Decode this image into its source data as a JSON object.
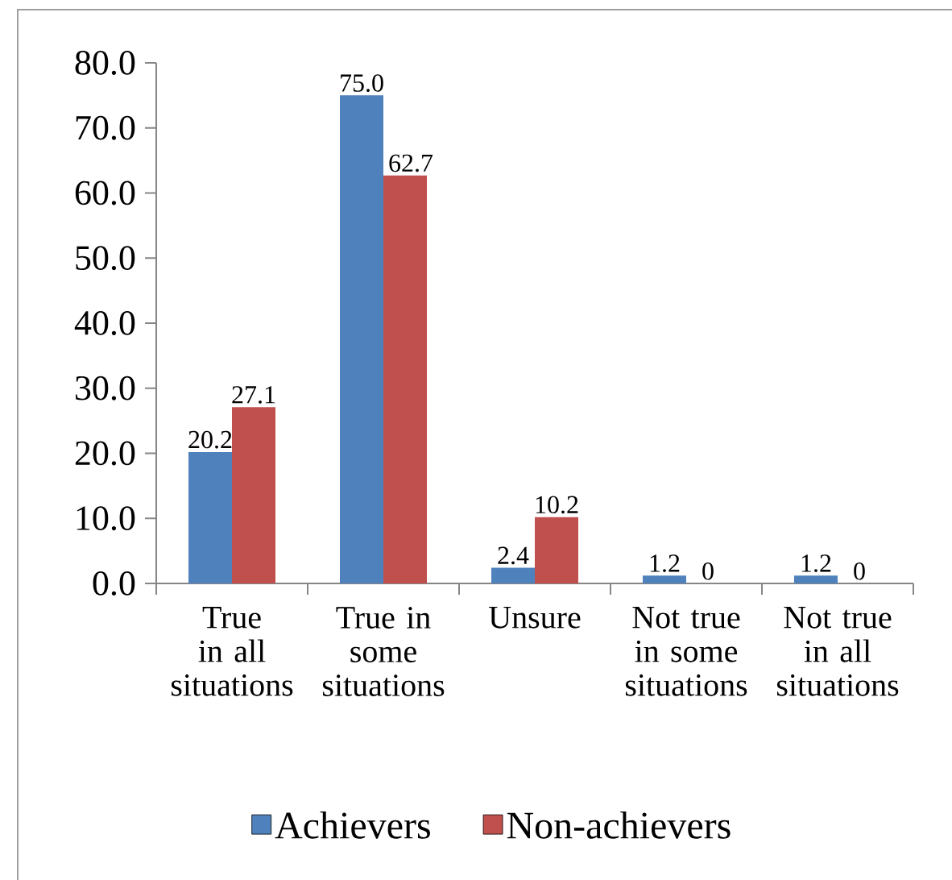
{
  "chart_data": {
    "type": "bar",
    "categories": [
      "True in all situations",
      "True in some situations",
      "Unsure",
      "Not true in some situations",
      "Not true in all situations"
    ],
    "series": [
      {
        "name": "Achievers",
        "color": "#4f81bd",
        "values": [
          20.2,
          75.0,
          2.4,
          1.2,
          1.2
        ],
        "value_labels": [
          "20.2",
          "75.0",
          "2.4",
          "1.2",
          "1.2"
        ]
      },
      {
        "name": "Non-achievers",
        "color": "#c0504d",
        "values": [
          27.1,
          62.7,
          10.2,
          0,
          0
        ],
        "value_labels": [
          "27.1",
          "62.7",
          "10.2",
          "0",
          "0"
        ]
      }
    ],
    "ylim": [
      0,
      80
    ],
    "yticks": [
      {
        "value": 0,
        "label": "0.0"
      },
      {
        "value": 10,
        "label": "10.0"
      },
      {
        "value": 20,
        "label": "20.0"
      },
      {
        "value": 30,
        "label": "30.0"
      },
      {
        "value": 40,
        "label": "40.0"
      },
      {
        "value": 50,
        "label": "50.0"
      },
      {
        "value": 60,
        "label": "60.0"
      },
      {
        "value": 70,
        "label": "70.0"
      },
      {
        "value": 80,
        "label": "80.0"
      }
    ],
    "legend": "bottom"
  }
}
